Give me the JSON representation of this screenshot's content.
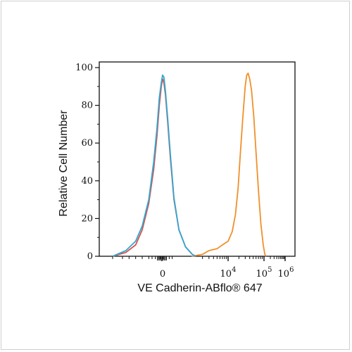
{
  "chart_data": {
    "type": "line",
    "xlabel": "VE Cadherin-ABflo® 647",
    "ylabel": "Relative Cell Number",
    "ylim": [
      0,
      100
    ],
    "y_ticks": [
      "0",
      "20",
      "40",
      "60",
      "80",
      "100"
    ],
    "x_scale": "biexponential",
    "x_tick_labels": [
      {
        "base": "0",
        "exp": ""
      },
      {
        "base": "10",
        "exp": "4"
      },
      {
        "base": "10",
        "exp": "5"
      },
      {
        "base": "10",
        "exp": "6"
      }
    ],
    "grid": false,
    "series": [
      {
        "color": "#d9534f",
        "x": [
          -1500,
          -1100,
          -800,
          -600,
          -400,
          -250,
          -150,
          -80,
          -20,
          40,
          100,
          160,
          240,
          340,
          460,
          620,
          820,
          1050,
          1300
        ],
        "y": [
          0,
          2,
          6,
          14,
          28,
          46,
          64,
          80,
          90,
          94,
          92,
          86,
          72,
          52,
          30,
          14,
          5,
          1,
          0
        ]
      },
      {
        "color": "#f0902a",
        "x": [
          1000,
          2000,
          3000,
          5000,
          7000,
          10000,
          13000,
          16000,
          19000,
          22000,
          26000,
          30000,
          33000,
          36000,
          40000,
          45000,
          52000,
          60000,
          70000,
          82000,
          95000,
          110000,
          125000
        ],
        "y": [
          0,
          1,
          3,
          4,
          6,
          8,
          13,
          22,
          36,
          55,
          75,
          90,
          96,
          97,
          94,
          88,
          74,
          55,
          35,
          17,
          6,
          1,
          0
        ]
      },
      {
        "color": "#33a7d1",
        "x": [
          -1500,
          -1100,
          -800,
          -600,
          -400,
          -250,
          -150,
          -80,
          -20,
          40,
          100,
          160,
          240,
          340,
          460,
          620,
          820,
          1050,
          1300
        ],
        "y": [
          0,
          3,
          8,
          16,
          30,
          50,
          68,
          84,
          92,
          96,
          95,
          88,
          74,
          54,
          31,
          14,
          5,
          1,
          0
        ]
      }
    ]
  }
}
